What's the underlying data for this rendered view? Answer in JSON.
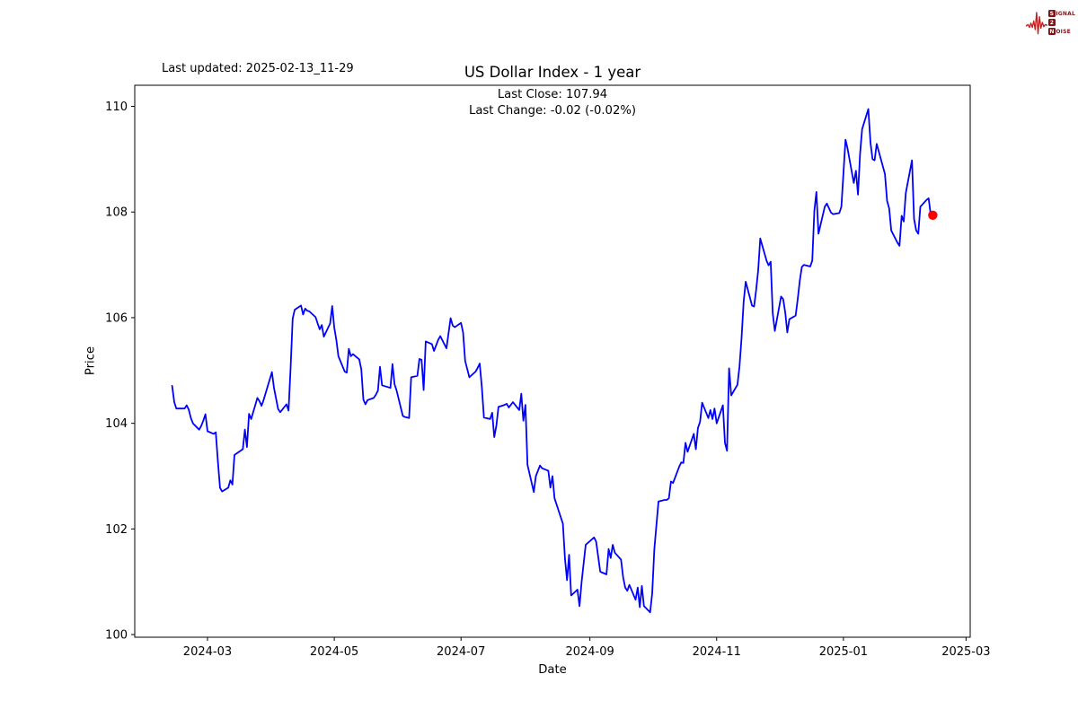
{
  "header": {
    "last_updated": "Last updated: 2025-02-13_11-29"
  },
  "logo": {
    "word1_boxed": "S",
    "word1_rest": "IGNAL",
    "word2_boxed": "2",
    "word3_boxed": "N",
    "word3_rest": "OISE",
    "waveform_color": "#c41f1f",
    "box_color": "#7d1417"
  },
  "chart_data": {
    "type": "line",
    "title": "US Dollar Index - 1 year",
    "annotation": [
      "Last Close: 107.94",
      "Last Change: -0.02 (-0.02%)"
    ],
    "xlabel": "Date",
    "ylabel": "Price",
    "last_close": 107.94,
    "last_change": "-0.02 (-0.02%)",
    "line_color": "#0000ff",
    "last_point_color": "#ff0000",
    "axis_color": "#000000",
    "grid": false,
    "legend": "none",
    "ylim": [
      99.95,
      110.4
    ],
    "xlim": [
      "2024-01-26",
      "2025-03-03"
    ],
    "y_ticks": [
      100,
      102,
      104,
      106,
      108,
      110
    ],
    "x_ticks": [
      {
        "label": "2024-03",
        "date": "2024-03-01"
      },
      {
        "label": "2024-05",
        "date": "2024-05-01"
      },
      {
        "label": "2024-07",
        "date": "2024-07-01"
      },
      {
        "label": "2024-09",
        "date": "2024-09-01"
      },
      {
        "label": "2024-11",
        "date": "2024-11-01"
      },
      {
        "label": "2025-01",
        "date": "2025-01-01"
      },
      {
        "label": "2025-03",
        "date": "2025-03-01"
      }
    ],
    "series": [
      {
        "name": "US Dollar Index",
        "points": [
          [
            "2024-02-13",
            104.71
          ],
          [
            "2024-02-14",
            104.4
          ],
          [
            "2024-02-15",
            104.28
          ],
          [
            "2024-02-16",
            104.28
          ],
          [
            "2024-02-19",
            104.28
          ],
          [
            "2024-02-20",
            104.34
          ],
          [
            "2024-02-21",
            104.26
          ],
          [
            "2024-02-22",
            104.1
          ],
          [
            "2024-02-23",
            104.0
          ],
          [
            "2024-02-26",
            103.88
          ],
          [
            "2024-02-27",
            103.95
          ],
          [
            "2024-02-28",
            104.05
          ],
          [
            "2024-02-29",
            104.17
          ],
          [
            "2024-03-01",
            103.85
          ],
          [
            "2024-03-04",
            103.8
          ],
          [
            "2024-03-05",
            103.83
          ],
          [
            "2024-03-06",
            103.29
          ],
          [
            "2024-03-07",
            102.78
          ],
          [
            "2024-03-08",
            102.71
          ],
          [
            "2024-03-11",
            102.78
          ],
          [
            "2024-03-12",
            102.92
          ],
          [
            "2024-03-13",
            102.84
          ],
          [
            "2024-03-14",
            103.4
          ],
          [
            "2024-03-15",
            103.43
          ],
          [
            "2024-03-18",
            103.51
          ],
          [
            "2024-03-19",
            103.88
          ],
          [
            "2024-03-20",
            103.55
          ],
          [
            "2024-03-21",
            104.18
          ],
          [
            "2024-03-22",
            104.08
          ],
          [
            "2024-03-25",
            104.48
          ],
          [
            "2024-03-26",
            104.42
          ],
          [
            "2024-03-27",
            104.33
          ],
          [
            "2024-03-28",
            104.44
          ],
          [
            "2024-04-01",
            104.97
          ],
          [
            "2024-04-02",
            104.67
          ],
          [
            "2024-04-04",
            104.27
          ],
          [
            "2024-04-05",
            104.21
          ],
          [
            "2024-04-08",
            104.36
          ],
          [
            "2024-04-09",
            104.24
          ],
          [
            "2024-04-10",
            105.05
          ],
          [
            "2024-04-11",
            105.98
          ],
          [
            "2024-04-12",
            106.15
          ],
          [
            "2024-04-15",
            106.23
          ],
          [
            "2024-04-16",
            106.06
          ],
          [
            "2024-04-17",
            106.17
          ],
          [
            "2024-04-18",
            106.13
          ],
          [
            "2024-04-19",
            106.12
          ],
          [
            "2024-04-22",
            106.01
          ],
          [
            "2024-04-23",
            105.89
          ],
          [
            "2024-04-24",
            105.78
          ],
          [
            "2024-04-25",
            105.86
          ],
          [
            "2024-04-26",
            105.64
          ],
          [
            "2024-04-29",
            105.89
          ],
          [
            "2024-04-30",
            106.22
          ],
          [
            "2024-05-01",
            105.81
          ],
          [
            "2024-05-02",
            105.58
          ],
          [
            "2024-05-03",
            105.27
          ],
          [
            "2024-05-06",
            104.98
          ],
          [
            "2024-05-07",
            104.96
          ],
          [
            "2024-05-08",
            105.41
          ],
          [
            "2024-05-09",
            105.27
          ],
          [
            "2024-05-10",
            105.31
          ],
          [
            "2024-05-13",
            105.21
          ],
          [
            "2024-05-14",
            105.02
          ],
          [
            "2024-05-15",
            104.45
          ],
          [
            "2024-05-16",
            104.36
          ],
          [
            "2024-05-17",
            104.44
          ],
          [
            "2024-05-20",
            104.48
          ],
          [
            "2024-05-21",
            104.54
          ],
          [
            "2024-05-22",
            104.62
          ],
          [
            "2024-05-23",
            105.07
          ],
          [
            "2024-05-24",
            104.72
          ],
          [
            "2024-05-28",
            104.67
          ],
          [
            "2024-05-29",
            105.12
          ],
          [
            "2024-05-30",
            104.74
          ],
          [
            "2024-05-31",
            104.62
          ],
          [
            "2024-06-03",
            104.14
          ],
          [
            "2024-06-04",
            104.12
          ],
          [
            "2024-06-06",
            104.1
          ],
          [
            "2024-06-07",
            104.87
          ],
          [
            "2024-06-10",
            104.9
          ],
          [
            "2024-06-11",
            105.22
          ],
          [
            "2024-06-12",
            105.2
          ],
          [
            "2024-06-13",
            104.63
          ],
          [
            "2024-06-14",
            105.55
          ],
          [
            "2024-06-17",
            105.5
          ],
          [
            "2024-06-18",
            105.37
          ],
          [
            "2024-06-20",
            105.58
          ],
          [
            "2024-06-21",
            105.65
          ],
          [
            "2024-06-24",
            105.42
          ],
          [
            "2024-06-26",
            105.99
          ],
          [
            "2024-06-27",
            105.85
          ],
          [
            "2024-06-28",
            105.82
          ],
          [
            "2024-07-01",
            105.9
          ],
          [
            "2024-07-02",
            105.72
          ],
          [
            "2024-07-03",
            105.18
          ],
          [
            "2024-07-05",
            104.87
          ],
          [
            "2024-07-08",
            104.98
          ],
          [
            "2024-07-09",
            105.05
          ],
          [
            "2024-07-10",
            105.13
          ],
          [
            "2024-07-11",
            104.7
          ],
          [
            "2024-07-12",
            104.11
          ],
          [
            "2024-07-15",
            104.08
          ],
          [
            "2024-07-16",
            104.2
          ],
          [
            "2024-07-17",
            103.74
          ],
          [
            "2024-07-18",
            103.95
          ],
          [
            "2024-07-19",
            104.31
          ],
          [
            "2024-07-22",
            104.35
          ],
          [
            "2024-07-23",
            104.37
          ],
          [
            "2024-07-24",
            104.3
          ],
          [
            "2024-07-25",
            104.35
          ],
          [
            "2024-07-26",
            104.4
          ],
          [
            "2024-07-29",
            104.25
          ],
          [
            "2024-07-30",
            104.56
          ],
          [
            "2024-07-31",
            104.05
          ],
          [
            "2024-08-01",
            104.35
          ],
          [
            "2024-08-02",
            103.21
          ],
          [
            "2024-08-05",
            102.7
          ],
          [
            "2024-08-06",
            103.0
          ],
          [
            "2024-08-08",
            103.2
          ],
          [
            "2024-08-09",
            103.15
          ],
          [
            "2024-08-12",
            103.1
          ],
          [
            "2024-08-13",
            102.78
          ],
          [
            "2024-08-14",
            103.0
          ],
          [
            "2024-08-15",
            102.58
          ],
          [
            "2024-08-19",
            102.1
          ],
          [
            "2024-08-20",
            101.44
          ],
          [
            "2024-08-21",
            101.03
          ],
          [
            "2024-08-22",
            101.51
          ],
          [
            "2024-08-23",
            100.74
          ],
          [
            "2024-08-26",
            100.85
          ],
          [
            "2024-08-27",
            100.54
          ],
          [
            "2024-08-28",
            100.99
          ],
          [
            "2024-08-29",
            101.35
          ],
          [
            "2024-08-30",
            101.7
          ],
          [
            "2024-09-03",
            101.84
          ],
          [
            "2024-09-04",
            101.76
          ],
          [
            "2024-09-06",
            101.19
          ],
          [
            "2024-09-09",
            101.14
          ],
          [
            "2024-09-10",
            101.62
          ],
          [
            "2024-09-11",
            101.45
          ],
          [
            "2024-09-12",
            101.7
          ],
          [
            "2024-09-13",
            101.55
          ],
          [
            "2024-09-16",
            101.42
          ],
          [
            "2024-09-17",
            101.08
          ],
          [
            "2024-09-18",
            100.89
          ],
          [
            "2024-09-19",
            100.83
          ],
          [
            "2024-09-20",
            100.94
          ],
          [
            "2024-09-23",
            100.66
          ],
          [
            "2024-09-24",
            100.89
          ],
          [
            "2024-09-25",
            100.52
          ],
          [
            "2024-09-26",
            100.92
          ],
          [
            "2024-09-27",
            100.54
          ],
          [
            "2024-09-30",
            100.42
          ],
          [
            "2024-10-01",
            100.78
          ],
          [
            "2024-10-02",
            101.62
          ],
          [
            "2024-10-04",
            102.52
          ],
          [
            "2024-10-07",
            102.55
          ],
          [
            "2024-10-08",
            102.55
          ],
          [
            "2024-10-09",
            102.58
          ],
          [
            "2024-10-10",
            102.9
          ],
          [
            "2024-10-11",
            102.87
          ],
          [
            "2024-10-14",
            103.18
          ],
          [
            "2024-10-15",
            103.26
          ],
          [
            "2024-10-16",
            103.25
          ],
          [
            "2024-10-17",
            103.63
          ],
          [
            "2024-10-18",
            103.46
          ],
          [
            "2024-10-21",
            103.8
          ],
          [
            "2024-10-22",
            103.51
          ],
          [
            "2024-10-23",
            103.91
          ],
          [
            "2024-10-24",
            104.03
          ],
          [
            "2024-10-25",
            104.39
          ],
          [
            "2024-10-28",
            104.1
          ],
          [
            "2024-10-29",
            104.25
          ],
          [
            "2024-10-30",
            104.08
          ],
          [
            "2024-10-31",
            104.28
          ],
          [
            "2024-11-01",
            104.0
          ],
          [
            "2024-11-04",
            104.34
          ],
          [
            "2024-11-05",
            103.63
          ],
          [
            "2024-11-06",
            103.48
          ],
          [
            "2024-11-07",
            105.04
          ],
          [
            "2024-11-08",
            104.53
          ],
          [
            "2024-11-11",
            104.73
          ],
          [
            "2024-11-12",
            105.08
          ],
          [
            "2024-11-13",
            105.62
          ],
          [
            "2024-11-14",
            106.3
          ],
          [
            "2024-11-15",
            106.68
          ],
          [
            "2024-11-18",
            106.23
          ],
          [
            "2024-11-19",
            106.21
          ],
          [
            "2024-11-20",
            106.52
          ],
          [
            "2024-11-21",
            106.9
          ],
          [
            "2024-11-22",
            107.5
          ],
          [
            "2024-11-25",
            107.08
          ],
          [
            "2024-11-26",
            106.99
          ],
          [
            "2024-11-27",
            107.06
          ],
          [
            "2024-11-28",
            106.08
          ],
          [
            "2024-11-29",
            105.75
          ],
          [
            "2024-12-02",
            106.4
          ],
          [
            "2024-12-03",
            106.35
          ],
          [
            "2024-12-04",
            106.1
          ],
          [
            "2024-12-05",
            105.72
          ],
          [
            "2024-12-06",
            105.97
          ],
          [
            "2024-12-09",
            106.04
          ],
          [
            "2024-12-10",
            106.35
          ],
          [
            "2024-12-11",
            106.7
          ],
          [
            "2024-12-12",
            106.96
          ],
          [
            "2024-12-13",
            107.0
          ],
          [
            "2024-12-16",
            106.97
          ],
          [
            "2024-12-17",
            107.08
          ],
          [
            "2024-12-18",
            108.02
          ],
          [
            "2024-12-19",
            108.38
          ],
          [
            "2024-12-20",
            107.59
          ],
          [
            "2024-12-23",
            108.1
          ],
          [
            "2024-12-24",
            108.16
          ],
          [
            "2024-12-26",
            107.99
          ],
          [
            "2024-12-27",
            107.96
          ],
          [
            "2024-12-30",
            107.98
          ],
          [
            "2024-12-31",
            108.1
          ],
          [
            "2025-01-02",
            109.37
          ],
          [
            "2025-01-03",
            109.2
          ],
          [
            "2025-01-06",
            108.55
          ],
          [
            "2025-01-07",
            108.78
          ],
          [
            "2025-01-08",
            108.33
          ],
          [
            "2025-01-09",
            109.1
          ],
          [
            "2025-01-10",
            109.57
          ],
          [
            "2025-01-13",
            109.95
          ],
          [
            "2025-01-14",
            109.31
          ],
          [
            "2025-01-15",
            109.0
          ],
          [
            "2025-01-16",
            108.98
          ],
          [
            "2025-01-17",
            109.29
          ],
          [
            "2025-01-21",
            108.72
          ],
          [
            "2025-01-22",
            108.21
          ],
          [
            "2025-01-23",
            108.07
          ],
          [
            "2025-01-24",
            107.65
          ],
          [
            "2025-01-27",
            107.42
          ],
          [
            "2025-01-28",
            107.36
          ],
          [
            "2025-01-29",
            107.93
          ],
          [
            "2025-01-30",
            107.82
          ],
          [
            "2025-01-31",
            108.36
          ],
          [
            "2025-02-03",
            108.98
          ],
          [
            "2025-02-04",
            107.87
          ],
          [
            "2025-02-05",
            107.65
          ],
          [
            "2025-02-06",
            107.59
          ],
          [
            "2025-02-07",
            108.1
          ],
          [
            "2025-02-10",
            108.23
          ],
          [
            "2025-02-11",
            108.26
          ],
          [
            "2025-02-12",
            107.96
          ],
          [
            "2025-02-13",
            107.94
          ]
        ]
      }
    ]
  }
}
